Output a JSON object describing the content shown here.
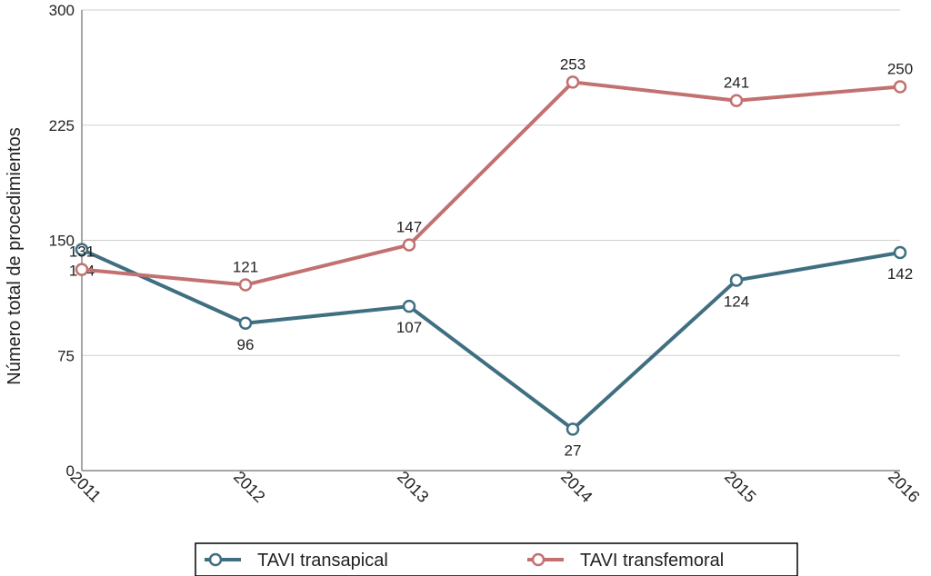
{
  "chart_data": {
    "type": "line",
    "y_label": "Número total de procedimientos",
    "categories": [
      "2011",
      "2012",
      "2013",
      "2014",
      "2015",
      "2016"
    ],
    "series": [
      {
        "name": "TAVI transapical",
        "color": "#3f6f80",
        "values": [
          144,
          96,
          107,
          27,
          124,
          142
        ]
      },
      {
        "name": "TAVI transfemoral",
        "color": "#c27170",
        "values": [
          131,
          121,
          147,
          253,
          241,
          250
        ]
      }
    ],
    "ylim": [
      0,
      300
    ],
    "yticks": [
      0,
      75,
      150,
      225,
      300
    ],
    "grid": true
  }
}
